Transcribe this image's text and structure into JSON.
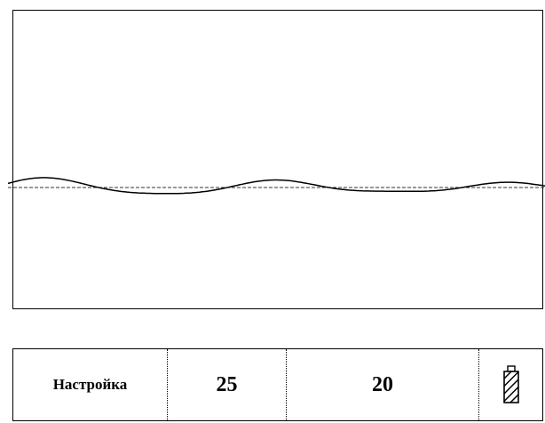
{
  "scope": {
    "signal_label": "waveform"
  },
  "status_bar": {
    "settings_label": "Настройка",
    "value_1": "25",
    "value_2": "20",
    "battery_icon": "battery-icon"
  }
}
